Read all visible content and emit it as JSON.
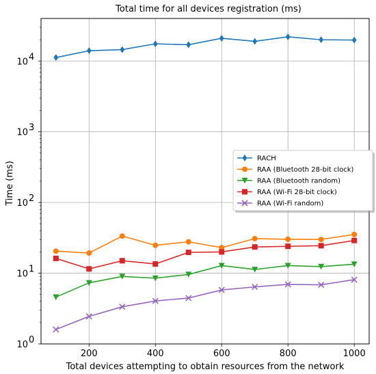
{
  "chart_data": {
    "type": "line",
    "title": "Total time for all devices registration (ms)",
    "xlabel": "Total devices attempting to obtain resources from the network",
    "ylabel": "Time (ms)",
    "y_scale": "log",
    "xlim": [
      55,
      1045
    ],
    "ylim": [
      1,
      40000
    ],
    "x_ticks": [
      200,
      400,
      600,
      800,
      1000
    ],
    "y_ticks": [
      {
        "value": 1,
        "base": "10",
        "exp": "0"
      },
      {
        "value": 10,
        "base": "10",
        "exp": "1"
      },
      {
        "value": 100,
        "base": "10",
        "exp": "2"
      },
      {
        "value": 1000,
        "base": "10",
        "exp": "3"
      },
      {
        "value": 10000,
        "base": "10",
        "exp": "4"
      }
    ],
    "grid": true,
    "legend_position": "right",
    "x": [
      100,
      200,
      300,
      400,
      500,
      600,
      700,
      800,
      900,
      1000
    ],
    "series": [
      {
        "name": "RACH",
        "color": "#1f77b4",
        "marker": "diamond",
        "values": [
          11200,
          14000,
          14500,
          17500,
          17000,
          21000,
          19000,
          22000,
          20000,
          19800
        ]
      },
      {
        "name": "RAA (Bluetooth 28-bit clock)",
        "color": "#ff7f0e",
        "marker": "circle",
        "values": [
          20.5,
          19.3,
          33.5,
          24.8,
          27.8,
          23.0,
          30.8,
          30.2,
          30.0,
          35.3
        ]
      },
      {
        "name": "RAA (Bluetooth random)",
        "color": "#2ca02c",
        "marker": "triangle-down",
        "values": [
          4.6,
          7.3,
          9.0,
          8.5,
          9.6,
          12.8,
          11.3,
          12.8,
          12.4,
          13.4
        ]
      },
      {
        "name": "RAA (Wi-Fi 28-bit clock)",
        "color": "#d62728",
        "marker": "square",
        "values": [
          16.2,
          11.5,
          15.0,
          13.5,
          19.7,
          20.0,
          23.5,
          24.0,
          24.5,
          29.0
        ]
      },
      {
        "name": "RAA (Wi-Fi random)",
        "color": "#9467bd",
        "marker": "x",
        "values": [
          1.6,
          2.45,
          3.35,
          4.05,
          4.45,
          5.8,
          6.4,
          6.95,
          6.85,
          8.1
        ]
      }
    ]
  }
}
